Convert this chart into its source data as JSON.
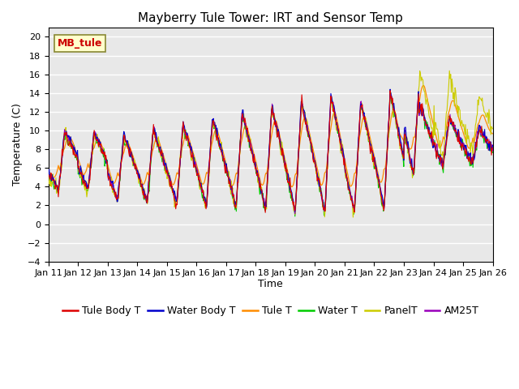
{
  "title": "Mayberry Tule Tower: IRT and Sensor Temp",
  "xlabel": "Time",
  "ylabel": "Temperature (C)",
  "ylim": [
    -4,
    21
  ],
  "yticks": [
    -4,
    -2,
    0,
    2,
    4,
    6,
    8,
    10,
    12,
    14,
    16,
    18,
    20
  ],
  "x_tick_labels": [
    "Jan 11",
    "Jan 12",
    "Jan 13",
    "Jan 14",
    "Jan 15",
    "Jan 16",
    "Jan 17",
    "Jan 18",
    "Jan 19",
    "Jan 20",
    "Jan 21",
    "Jan 22",
    "Jan 23",
    "Jan 24",
    "Jan 25",
    "Jan 26"
  ],
  "num_days": 15,
  "legend_entries": [
    "Tule Body T",
    "Water Body T",
    "Tule T",
    "Water T",
    "PanelT",
    "AM25T"
  ],
  "legend_colors": [
    "#dd0000",
    "#0000cc",
    "#ff8c00",
    "#00cc00",
    "#cccc00",
    "#9900bb"
  ],
  "watermark_text": "MB_tule",
  "watermark_color": "#cc0000",
  "watermark_bg": "#ffffcc",
  "plot_bg_color": "#e8e8e8",
  "fig_bg_color": "#ffffff",
  "grid_color": "#ffffff",
  "title_fontsize": 11,
  "tick_fontsize": 8,
  "legend_fontsize": 9
}
